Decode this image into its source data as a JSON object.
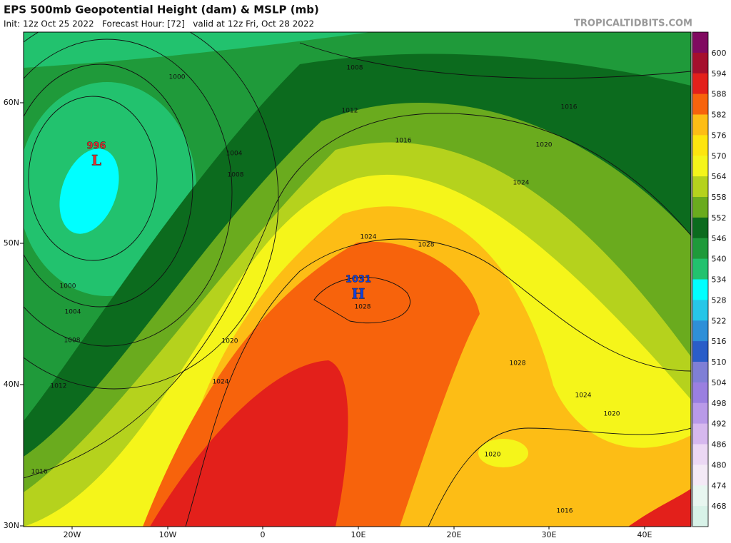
{
  "header": {
    "title": "EPS 500mb Geopotential Height (dam) & MSLP (mb)",
    "subtitle": "Init: 12z Oct 25 2022   Forecast Hour: [72]   valid at 12z Fri, Oct 28 2022",
    "watermark": "TROPICALTIDBITS.COM"
  },
  "axes": {
    "latitude_labels": [
      "60N",
      "50N",
      "40N",
      "30N"
    ],
    "longitude_labels": [
      "20W",
      "10W",
      "0",
      "10E",
      "20E",
      "30E",
      "40E"
    ]
  },
  "colorbar": {
    "levels": [
      600,
      594,
      588,
      582,
      576,
      570,
      564,
      558,
      552,
      546,
      540,
      534,
      528,
      522,
      516,
      510,
      504,
      498,
      492,
      486,
      480,
      474,
      468
    ],
    "colors": [
      "#800a60",
      "#a50f2d",
      "#e3201b",
      "#f7630c",
      "#fdbd15",
      "#fde50e",
      "#f5f51a",
      "#b5d21d",
      "#6aab1e",
      "#0c6b1e",
      "#1f9a3a",
      "#22c26e",
      "#00ffff",
      "#26c6e8",
      "#2e8fd8",
      "#2a5dc8",
      "#7f7fd6",
      "#9a7fe0",
      "#b99ae8",
      "#d6b8ee",
      "#ecd8f4",
      "#f4eaf6",
      "#e8f6f0",
      "#d8f2e8"
    ]
  },
  "contour_labels": [
    1000,
    1008,
    1012,
    1016,
    1016,
    1020,
    1004,
    1008,
    1024,
    1024,
    1028,
    1000,
    1004,
    1008,
    1020,
    1028,
    1012,
    1024,
    1028,
    1024,
    1020,
    1020,
    1016,
    1016
  ],
  "centers": [
    {
      "value": 996,
      "symbol": "L"
    },
    {
      "value": 1031,
      "symbol": "H"
    }
  ]
}
